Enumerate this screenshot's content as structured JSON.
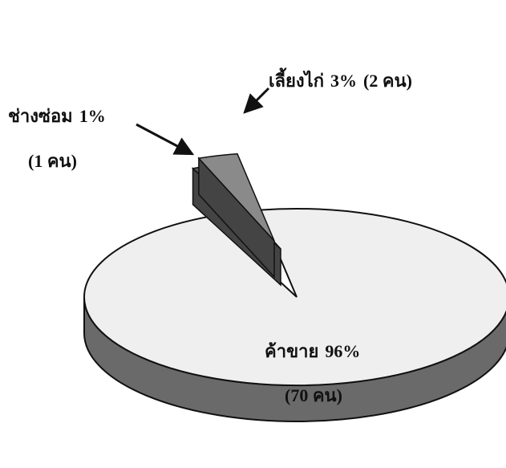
{
  "chart_data": {
    "type": "pie",
    "categories": [
      "ช่างซ่อม",
      "เลี้ยงไก่",
      "ค้าขาย"
    ],
    "values": [
      1,
      3,
      96
    ],
    "value_labels": [
      "1%",
      "3%",
      "96%"
    ],
    "counts": [
      1,
      2,
      70
    ],
    "count_labels": [
      "(1 คน)",
      "(2 คน)",
      "(70 คน)"
    ],
    "colors": [
      "#5a5a5a",
      "#8a8a8a",
      "#efefef"
    ]
  }
}
